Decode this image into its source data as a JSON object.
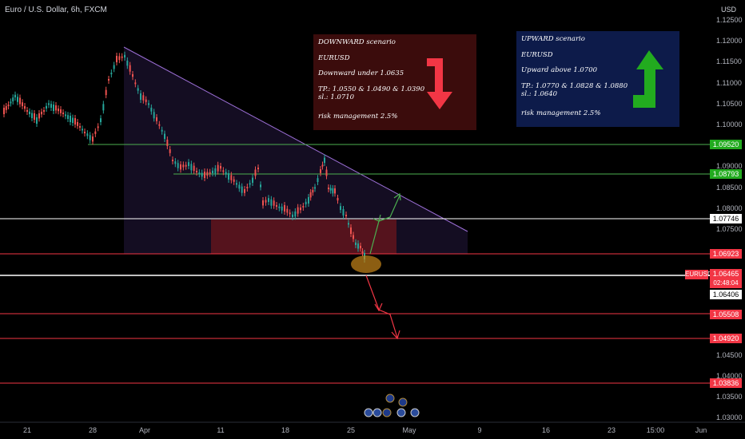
{
  "header": {
    "title": "Euro / U.S. Dollar, 6h, FXCM",
    "currency": "USD"
  },
  "y_axis": {
    "ticks": [
      "1.12500",
      "1.12000",
      "1.11500",
      "1.11000",
      "1.10500",
      "1.10000",
      "1.09000",
      "1.08500",
      "1.08000",
      "1.07500",
      "1.04500",
      "1.04000",
      "1.03500",
      "1.03000"
    ]
  },
  "x_axis": {
    "ticks": [
      "21",
      "28",
      "Apr",
      "11",
      "18",
      "25",
      "May",
      "9",
      "16",
      "23",
      "15:00",
      "Jun"
    ]
  },
  "price_levels": [
    {
      "value": "1.09520",
      "color": "#22ab1f",
      "line": "#4caf50"
    },
    {
      "value": "1.08793",
      "color": "#22ab1f",
      "line": "#4caf50"
    },
    {
      "value": "1.07746",
      "color": "#ffffff",
      "line": "#ffffff"
    },
    {
      "value": "1.06923",
      "color": "#f23645",
      "line": "#f23645"
    },
    {
      "value": "1.06406",
      "color": "#ffffff",
      "line": "#ffffff"
    },
    {
      "value": "1.05508",
      "color": "#f23645",
      "line": "#f23645"
    },
    {
      "value": "1.04920",
      "color": "#f23645",
      "line": "#f23645"
    },
    {
      "value": "1.03836",
      "color": "#f23645",
      "line": "#f23645"
    }
  ],
  "current_price": {
    "symbol": "EURUSD",
    "price": "1.06465",
    "countdown": "02:48:04"
  },
  "notes": {
    "downward": {
      "title": "DOWNWARD scenario",
      "symbol": "EURUSD",
      "condition": "Downward under 1.0635",
      "tp": "TP.:  1.0550 & 1.0490 & 1.0390",
      "sl": "sl.: 1.0710",
      "risk": "risk management 2.5%"
    },
    "upward": {
      "title": "UPWARD scenario",
      "symbol": "EURUSD",
      "condition": "Upward above 1.0700",
      "tp": "TP.:  1.0770 & 1.0828 & 1.0880",
      "sl": "sl.: 1.0640",
      "risk": "risk management 2.5%"
    }
  },
  "colors": {
    "bull": "#26a69a",
    "bear": "#ef5350",
    "background": "#000000"
  }
}
